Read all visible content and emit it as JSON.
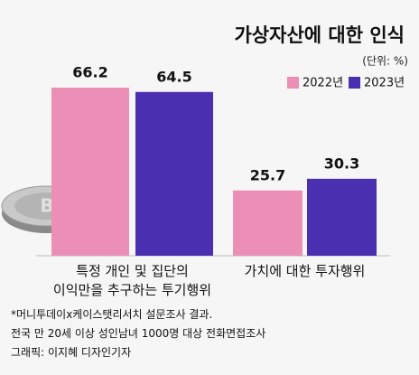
{
  "chart_data": {
    "type": "bar",
    "title": "가상자산에 대한 인식",
    "unit": "(단위: %)",
    "categories": [
      "특정 개인 및 집단의\n이익만을 추구하는 투기행위",
      "가치에 대한 투자행위"
    ],
    "series": [
      {
        "name": "2022년",
        "color": "#ec8fb6",
        "values": [
          66.2,
          25.7
        ]
      },
      {
        "name": "2023년",
        "color": "#4a2fb0",
        "values": [
          64.5,
          30.3
        ]
      }
    ],
    "notes": [
      "*머니투데이x케이스탯리서치 설문조사 결과.",
      "전국 만 20세 이상 성인남녀 1000명 대상 전화면접조사",
      "그래픽: 이지혜 디자인기자"
    ]
  }
}
